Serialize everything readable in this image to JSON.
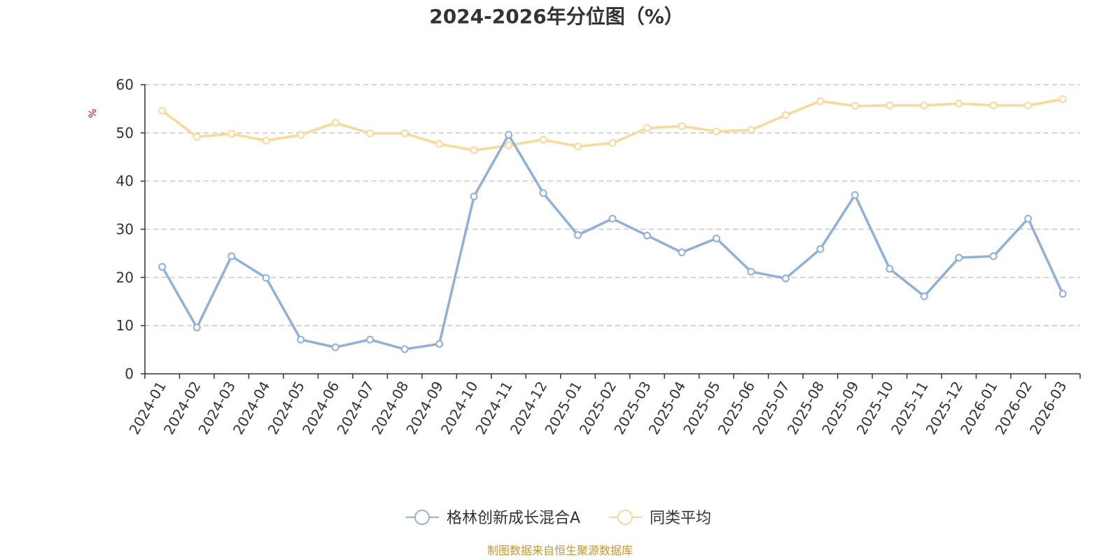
{
  "chart_data": {
    "type": "line",
    "title": "2024-2026年分位图（%）",
    "ylabel": "%",
    "ylim": [
      0,
      60
    ],
    "yticks": [
      0,
      10,
      20,
      30,
      40,
      50,
      60
    ],
    "grid": true,
    "legend_position": "bottom",
    "categories": [
      "2024-01",
      "2024-02",
      "2024-03",
      "2024-04",
      "2024-05",
      "2024-06",
      "2024-07",
      "2024-08",
      "2024-09",
      "2024-10",
      "2024-11",
      "2024-12",
      "2025-01",
      "2025-02",
      "2025-03",
      "2025-04",
      "2025-05",
      "2025-06",
      "2025-07",
      "2025-08",
      "2025-09",
      "2025-10",
      "2025-11",
      "2025-12",
      "2026-01",
      "2026-02",
      "2026-03"
    ],
    "series": [
      {
        "name": "格林创新成长混合A",
        "color": "#8eb0dc",
        "values": [
          22.2,
          9.6,
          24.4,
          19.9,
          7.1,
          5.5,
          7.1,
          5.1,
          6.2,
          36.8,
          49.6,
          37.5,
          28.8,
          32.2,
          28.7,
          25.2,
          28.1,
          21.2,
          19.8,
          25.9,
          37.1,
          21.8,
          16.1,
          24.1,
          24.4,
          32.2,
          16.6
        ]
      },
      {
        "name": "同类平均",
        "color": "#fcd795",
        "values": [
          54.6,
          49.2,
          49.8,
          48.4,
          49.6,
          52.1,
          49.9,
          49.9,
          47.7,
          46.4,
          47.4,
          48.6,
          47.2,
          47.9,
          51.0,
          51.4,
          50.3,
          50.6,
          53.7,
          56.6,
          55.6,
          55.7,
          55.7,
          56.1,
          55.7,
          55.7,
          57.0
        ]
      }
    ]
  },
  "footer": {
    "source": "制图数据来自恒生聚源数据库"
  }
}
